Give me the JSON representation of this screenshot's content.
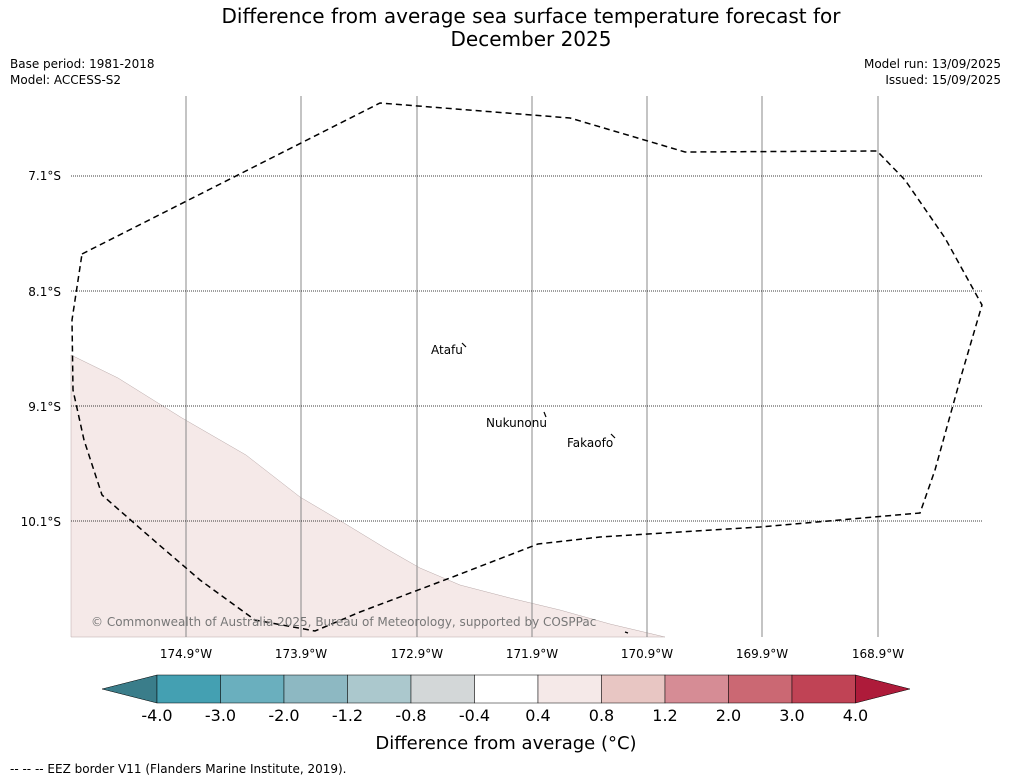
{
  "title_line1": "Difference from average sea surface temperature forecast for",
  "title_line2": "December 2025",
  "base_period": "Base period: 1981-2018",
  "model": "Model: ACCESS-S2",
  "model_run": "Model run: 13/09/2025",
  "issued": "Issued: 15/09/2025",
  "lat_labels": [
    "7.1°S",
    "8.1°S",
    "9.1°S",
    "10.1°S"
  ],
  "lon_labels": [
    "174.9°W",
    "173.9°W",
    "172.9°W",
    "171.9°W",
    "170.9°W",
    "169.9°W",
    "168.9°W"
  ],
  "places": {
    "atafu": "Atafu",
    "nukunonu": "Nukunonu",
    "fakaofo": "Fakaofo"
  },
  "credit": "© Commonwealth of Australia 2025, Bureau of Meteorology, supported by COSPPac",
  "colorbar": {
    "tick_labels": [
      "-4.0",
      "-3.0",
      "-2.0",
      "-1.2",
      "-0.8",
      "-0.4",
      "0.4",
      "0.8",
      "1.2",
      "2.0",
      "3.0",
      "4.0"
    ],
    "colors": [
      "#3a7d8a",
      "#44a0b2",
      "#6aafbe",
      "#8db8c2",
      "#abc8cd",
      "#d3d7d8",
      "#ffffff",
      "#f5e9e8",
      "#e8c6c3",
      "#d68c95",
      "#cb6873",
      "#c04355",
      "#ae1b3a"
    ],
    "label": "Difference from average (°C)"
  },
  "map_fill_color": "#f5e9e8",
  "footer": "--  --  -- EEZ border V11 (Flanders Marine Institute, 2019)."
}
